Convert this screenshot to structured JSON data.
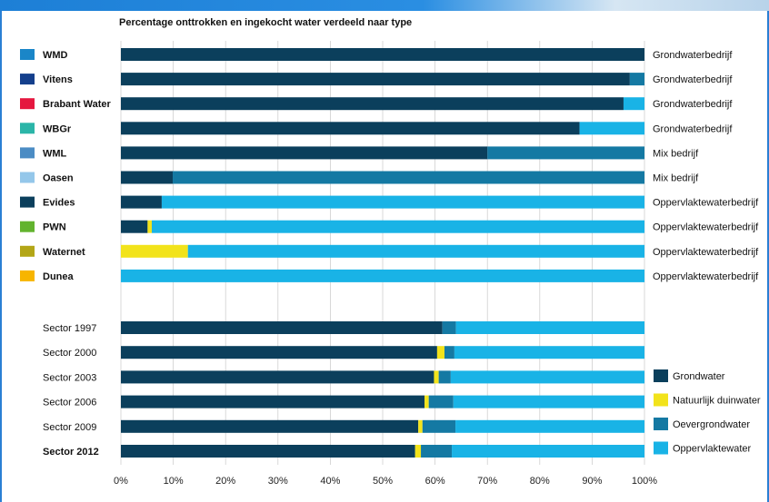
{
  "chart_data": {
    "type": "bar",
    "orientation": "horizontal",
    "stacked": true,
    "title": "Percentage onttrokken en ingekocht water verdeeld naar type",
    "xlim": [
      0,
      100
    ],
    "x_ticks": [
      "0%",
      "10%",
      "20%",
      "30%",
      "40%",
      "50%",
      "60%",
      "70%",
      "80%",
      "90%",
      "100%"
    ],
    "grid": true,
    "series_names": [
      "Grondwater",
      "Natuurlijk duinwater",
      "Oevergrondwater",
      "Oppervlaktewater"
    ],
    "series_colors": [
      "#0b3f5c",
      "#f2e31b",
      "#1479a3",
      "#19b3e6"
    ],
    "companies": [
      {
        "name": "WMD",
        "swatch": "#1a86c8",
        "type": "Grondwaterbedrijf",
        "values": [
          100,
          0,
          0,
          0
        ]
      },
      {
        "name": "Vitens",
        "swatch": "#143f8c",
        "type": "Grondwaterbedrijf",
        "values": [
          97.2,
          0,
          2.8,
          0
        ]
      },
      {
        "name": "Brabant Water",
        "swatch": "#e5173f",
        "type": "Grondwaterbedrijf",
        "values": [
          96,
          0,
          0,
          4
        ]
      },
      {
        "name": "WBGr",
        "swatch": "#2bb5a8",
        "type": "Grondwaterbedrijf",
        "values": [
          87.6,
          0,
          0,
          12.4
        ]
      },
      {
        "name": "WML",
        "swatch": "#4b8cc4",
        "type": "Mix bedrijf",
        "values": [
          70,
          0,
          30,
          0
        ]
      },
      {
        "name": "Oasen",
        "swatch": "#94c7ea",
        "type": "Mix bedrijf",
        "values": [
          9.9,
          0,
          90.1,
          0
        ]
      },
      {
        "name": "Evides",
        "swatch": "#0b3f5c",
        "type": "Oppervlaktewaterbedrijf",
        "values": [
          7.8,
          0,
          0,
          92.2
        ]
      },
      {
        "name": "PWN",
        "swatch": "#62b32e",
        "type": "Oppervlaktewaterbedrijf",
        "values": [
          5.1,
          0.8,
          0,
          94.1
        ]
      },
      {
        "name": "Waternet",
        "swatch": "#b3a617",
        "type": "Oppervlaktewaterbedrijf",
        "values": [
          0,
          12.8,
          0,
          87.2
        ]
      },
      {
        "name": "Dunea",
        "swatch": "#f7b500",
        "type": "Oppervlaktewaterbedrijf",
        "values": [
          0,
          0,
          0,
          100
        ]
      }
    ],
    "sectors": [
      {
        "name": "Sector 1997",
        "values": [
          61.4,
          0,
          2.6,
          36
        ]
      },
      {
        "name": "Sector 2000",
        "values": [
          60.4,
          1.4,
          1.9,
          36.3
        ]
      },
      {
        "name": "Sector 2003",
        "values": [
          59.8,
          0.9,
          2.3,
          37
        ]
      },
      {
        "name": "Sector 2006",
        "values": [
          58,
          0.8,
          4.7,
          36.5
        ]
      },
      {
        "name": "Sector 2009",
        "values": [
          56.8,
          0.8,
          6.3,
          36.1
        ]
      },
      {
        "name": "Sector 2012",
        "values": [
          56.2,
          1.1,
          5.9,
          36.8
        ]
      }
    ]
  }
}
